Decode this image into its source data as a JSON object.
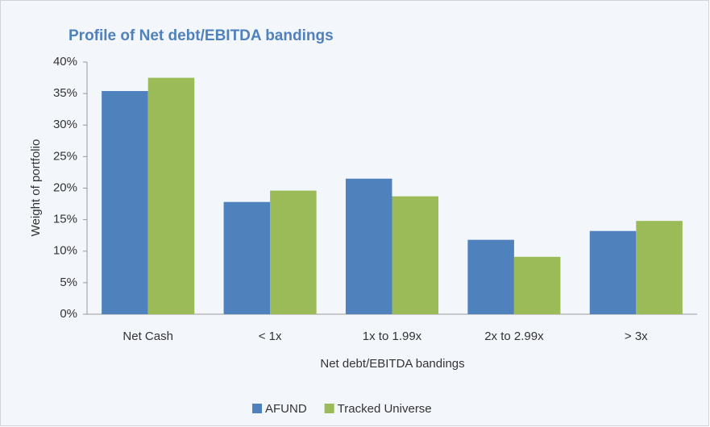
{
  "chart_data": {
    "type": "bar",
    "title": "Profile of Net debt/EBITDA bandings",
    "x_label": "Net debt/EBITDA bandings",
    "y_label": "Weight of portfolio",
    "categories": [
      "Net Cash",
      "< 1x",
      "1x to 1.99x",
      "2x to 2.99x",
      "> 3x"
    ],
    "series": [
      {
        "name": "AFUND",
        "color": "#4f81bd",
        "values": [
          35.4,
          17.8,
          21.5,
          11.8,
          13.2
        ]
      },
      {
        "name": "Tracked Universe",
        "color": "#9bbb59",
        "values": [
          37.5,
          19.6,
          18.7,
          9.1,
          14.8
        ]
      }
    ],
    "ylim": [
      0,
      40
    ],
    "yticks": [
      {
        "value": 0,
        "label": "0%"
      },
      {
        "value": 5,
        "label": "5%"
      },
      {
        "value": 10,
        "label": "10%"
      },
      {
        "value": 15,
        "label": "15%"
      },
      {
        "value": 20,
        "label": "20%"
      },
      {
        "value": 25,
        "label": "25%"
      },
      {
        "value": 30,
        "label": "30%"
      },
      {
        "value": 35,
        "label": "35%"
      },
      {
        "value": 40,
        "label": "40%"
      }
    ],
    "grid": false,
    "legend": "bottom"
  }
}
